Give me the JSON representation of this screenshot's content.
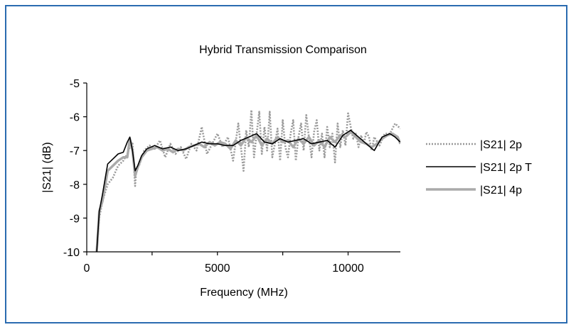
{
  "colors": {
    "frame_border": "#2a6bb0",
    "axis": "#000000"
  },
  "chart_data": {
    "type": "line",
    "title": "Hybrid Transmission Comparison",
    "xlabel": "Frequency (MHz)",
    "ylabel": "|S21| (dB)",
    "xlim": [
      0,
      12000
    ],
    "ylim": [
      -10,
      -5
    ],
    "xticks": [
      0,
      5000,
      10000
    ],
    "xtick_labels": [
      "0",
      "5000",
      "10000"
    ],
    "yticks": [
      -10,
      -9,
      -8,
      -7,
      -6,
      -5
    ],
    "ytick_labels": [
      "-10",
      "-9",
      "-8",
      "-7",
      "-6",
      "-5"
    ],
    "grid": false,
    "legend_position": "right",
    "series": [
      {
        "name": "|S21| 2p",
        "color": "#999999",
        "style": "dotted",
        "x": [
          380,
          480,
          600,
          800,
          1000,
          1200,
          1400,
          1550,
          1650,
          1750,
          1850,
          1900,
          2000,
          2200,
          2400,
          2600,
          2800,
          3000,
          3200,
          3400,
          3600,
          3800,
          4000,
          4200,
          4400,
          4600,
          4800,
          5000,
          5200,
          5400,
          5600,
          5800,
          6000,
          6100,
          6200,
          6300,
          6400,
          6500,
          6600,
          6700,
          6800,
          6900,
          7000,
          7100,
          7200,
          7300,
          7400,
          7500,
          7600,
          7700,
          7800,
          7900,
          8000,
          8100,
          8200,
          8300,
          8400,
          8500,
          8600,
          8700,
          8800,
          8900,
          9000,
          9100,
          9200,
          9300,
          9400,
          9500,
          9600,
          9700,
          9800,
          9900,
          10000,
          10100,
          10200,
          10300,
          10400,
          10500,
          10600,
          10700,
          10800,
          10900,
          11000,
          11200,
          11400,
          11600,
          11800,
          12000
        ],
        "values": [
          -10,
          -9.0,
          -8.5,
          -8.0,
          -7.8,
          -7.45,
          -7.3,
          -7.1,
          -6.9,
          -6.75,
          -8.05,
          -7.5,
          -7.45,
          -7.0,
          -6.85,
          -6.95,
          -6.7,
          -7.2,
          -6.8,
          -7.1,
          -6.9,
          -7.25,
          -6.8,
          -7.0,
          -6.3,
          -7.1,
          -6.8,
          -6.5,
          -6.9,
          -6.6,
          -7.3,
          -6.2,
          -7.6,
          -6.4,
          -6.9,
          -5.8,
          -7.2,
          -6.5,
          -5.85,
          -7.1,
          -6.3,
          -7.0,
          -5.85,
          -7.2,
          -6.8,
          -6.35,
          -7.3,
          -6.1,
          -6.9,
          -7.2,
          -6.5,
          -6.1,
          -7.3,
          -6.6,
          -6.2,
          -7.0,
          -5.95,
          -6.6,
          -7.2,
          -6.45,
          -6.1,
          -7.0,
          -6.5,
          -7.2,
          -6.3,
          -6.9,
          -6.5,
          -7.35,
          -6.2,
          -6.9,
          -6.4,
          -6.85,
          -5.9,
          -6.3,
          -6.65,
          -6.5,
          -6.9,
          -6.55,
          -6.8,
          -6.45,
          -6.6,
          -7.0,
          -6.6,
          -6.85,
          -6.5,
          -6.5,
          -6.2,
          -6.35
        ]
      },
      {
        "name": "|S21| 2p T",
        "color": "#000000",
        "style": "solid",
        "x": [
          380,
          480,
          600,
          800,
          1000,
          1200,
          1400,
          1550,
          1650,
          1750,
          1850,
          1950,
          2100,
          2300,
          2600,
          2900,
          3200,
          3500,
          3800,
          4100,
          4400,
          4700,
          5000,
          5300,
          5600,
          5900,
          6200,
          6500,
          6800,
          7100,
          7400,
          7700,
          8000,
          8300,
          8600,
          8900,
          9200,
          9500,
          9800,
          10100,
          10400,
          10700,
          11000,
          11300,
          11600,
          11800,
          12000
        ],
        "values": [
          -10,
          -8.8,
          -8.3,
          -7.4,
          -7.25,
          -7.1,
          -7.05,
          -6.75,
          -6.6,
          -7.0,
          -7.6,
          -7.45,
          -7.15,
          -6.95,
          -6.85,
          -6.95,
          -6.9,
          -7.0,
          -6.95,
          -6.85,
          -6.75,
          -6.8,
          -6.8,
          -6.85,
          -6.85,
          -6.7,
          -6.6,
          -6.5,
          -6.75,
          -6.8,
          -6.65,
          -6.75,
          -6.7,
          -6.65,
          -6.8,
          -6.75,
          -6.7,
          -6.9,
          -6.55,
          -6.4,
          -6.6,
          -6.8,
          -7.0,
          -6.6,
          -6.5,
          -6.6,
          -6.75
        ]
      },
      {
        "name": "|S21| 4p",
        "color": "#aaaaaa",
        "style": "solid-thick",
        "x": [
          380,
          480,
          600,
          800,
          1000,
          1200,
          1400,
          1550,
          1650,
          1750,
          1850,
          1950,
          2100,
          2300,
          2500,
          2700,
          2900,
          3100,
          3300,
          3500,
          3700,
          3900,
          4100,
          4300,
          4500,
          4700,
          4900,
          5100,
          5300,
          5500,
          5700,
          5900,
          6100,
          6300,
          6500,
          6700,
          6900,
          7100,
          7300,
          7500,
          7700,
          7900,
          8100,
          8300,
          8500,
          8700,
          8900,
          9100,
          9300,
          9500,
          9700,
          9900,
          10100,
          10300,
          10500,
          10700,
          10900,
          11100,
          11300,
          11500,
          11700,
          11900,
          12000
        ],
        "values": [
          -10,
          -8.8,
          -8.5,
          -7.6,
          -7.45,
          -7.3,
          -7.2,
          -7.2,
          -6.65,
          -7.0,
          -7.75,
          -7.5,
          -7.2,
          -7.0,
          -6.95,
          -6.9,
          -7.0,
          -6.95,
          -7.05,
          -6.95,
          -7.0,
          -6.9,
          -6.85,
          -6.8,
          -6.9,
          -6.75,
          -6.85,
          -6.75,
          -6.8,
          -6.95,
          -6.7,
          -6.85,
          -6.6,
          -6.75,
          -6.55,
          -6.85,
          -6.65,
          -6.8,
          -6.6,
          -6.75,
          -6.7,
          -6.9,
          -6.65,
          -6.8,
          -6.6,
          -6.85,
          -6.7,
          -6.9,
          -6.6,
          -6.75,
          -6.55,
          -6.6,
          -6.45,
          -6.6,
          -6.75,
          -6.8,
          -6.9,
          -6.8,
          -6.65,
          -6.55,
          -6.5,
          -6.6,
          -6.8
        ]
      }
    ]
  }
}
